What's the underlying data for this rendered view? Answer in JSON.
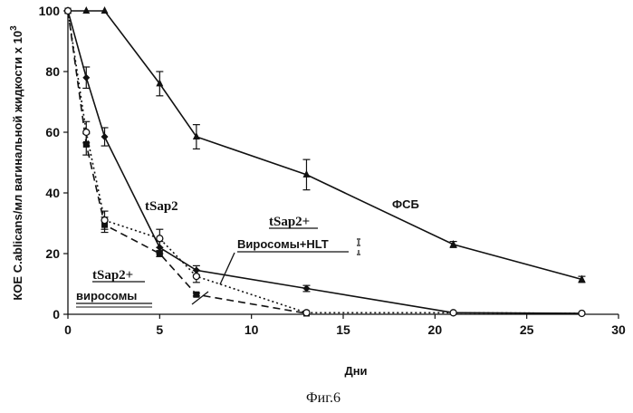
{
  "figure": {
    "caption": "Фиг.6"
  },
  "chart_data": {
    "type": "line",
    "title": "",
    "xlabel": "Дни",
    "ylabel": "КОЕ C.ablicans/мл вагинальной жидкости  х 10",
    "ylabel_superscript": "3",
    "xlim": [
      0,
      30
    ],
    "ylim": [
      0,
      100
    ],
    "xticks": [
      0,
      5,
      10,
      15,
      20,
      25,
      30
    ],
    "yticks": [
      0,
      20,
      40,
      60,
      80,
      100
    ],
    "grid": false,
    "series": [
      {
        "name": "ФСБ",
        "marker": "triangle",
        "line": "solid",
        "x": [
          0,
          1,
          2,
          5,
          7,
          13,
          21,
          28
        ],
        "y": [
          100,
          100,
          100,
          76,
          58.5,
          46,
          23,
          11.5
        ],
        "err": [
          0,
          0,
          0,
          4,
          4,
          5,
          1,
          1
        ]
      },
      {
        "name": "tSap2",
        "marker": "diamond",
        "line": "solid",
        "x": [
          0,
          1,
          2,
          5,
          7,
          13,
          21,
          28
        ],
        "y": [
          100,
          78,
          58.5,
          22,
          14.5,
          8.5,
          0.5,
          0.3
        ],
        "err": [
          0,
          3.5,
          3,
          2,
          1.5,
          1,
          0,
          0
        ]
      },
      {
        "name": "tSap2+ виросомы",
        "marker": "square",
        "line": "dashed",
        "x": [
          0,
          1,
          2,
          5,
          7,
          13
        ],
        "y": [
          100,
          56,
          29.5,
          20,
          6.5,
          0.3
        ],
        "err": [
          0,
          3.5,
          2.5,
          1,
          0.5,
          0
        ]
      },
      {
        "name": "tSap2+ Виросомы+HLT",
        "marker": "circle",
        "line": "dotted",
        "x": [
          0,
          1,
          2,
          5,
          7,
          13,
          21,
          28
        ],
        "y": [
          100,
          60,
          31,
          25,
          12.5,
          0.5,
          0.5,
          0.3
        ],
        "err": [
          0,
          3.5,
          3,
          3,
          2,
          0,
          0,
          0
        ]
      }
    ],
    "annotations": [
      {
        "id": "fsb",
        "text": "ФСБ"
      },
      {
        "id": "tsap2",
        "text": "tSap2"
      },
      {
        "id": "hlt1",
        "text": "tSap2+"
      },
      {
        "id": "hlt2",
        "text": "Виросомы+HLT"
      },
      {
        "id": "vir1",
        "text": "tSap2+"
      },
      {
        "id": "vir2",
        "text": "виросомы"
      }
    ]
  }
}
